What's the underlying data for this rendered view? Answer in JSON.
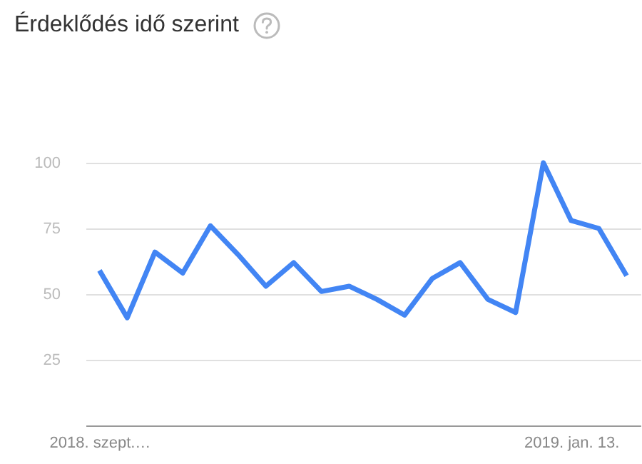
{
  "chart_data": {
    "type": "line",
    "title": "Érdeklődés idő szerint",
    "categories": [
      "2018. szept.…",
      null,
      null,
      null,
      null,
      null,
      null,
      null,
      null,
      null,
      null,
      null,
      null,
      null,
      null,
      null,
      null,
      "2019. jan. 13.",
      null,
      null
    ],
    "series": [
      {
        "color": "#4285f4",
        "values": [
          59,
          41,
          66,
          58,
          76,
          65,
          53,
          62,
          51,
          53,
          48,
          42,
          56,
          62,
          48,
          43,
          100,
          78,
          75,
          57
        ]
      }
    ],
    "ylim": [
      0,
      100
    ],
    "yticks": [
      25,
      50,
      75,
      100
    ],
    "grid": "y",
    "marker": "none",
    "line_style": "solid"
  }
}
